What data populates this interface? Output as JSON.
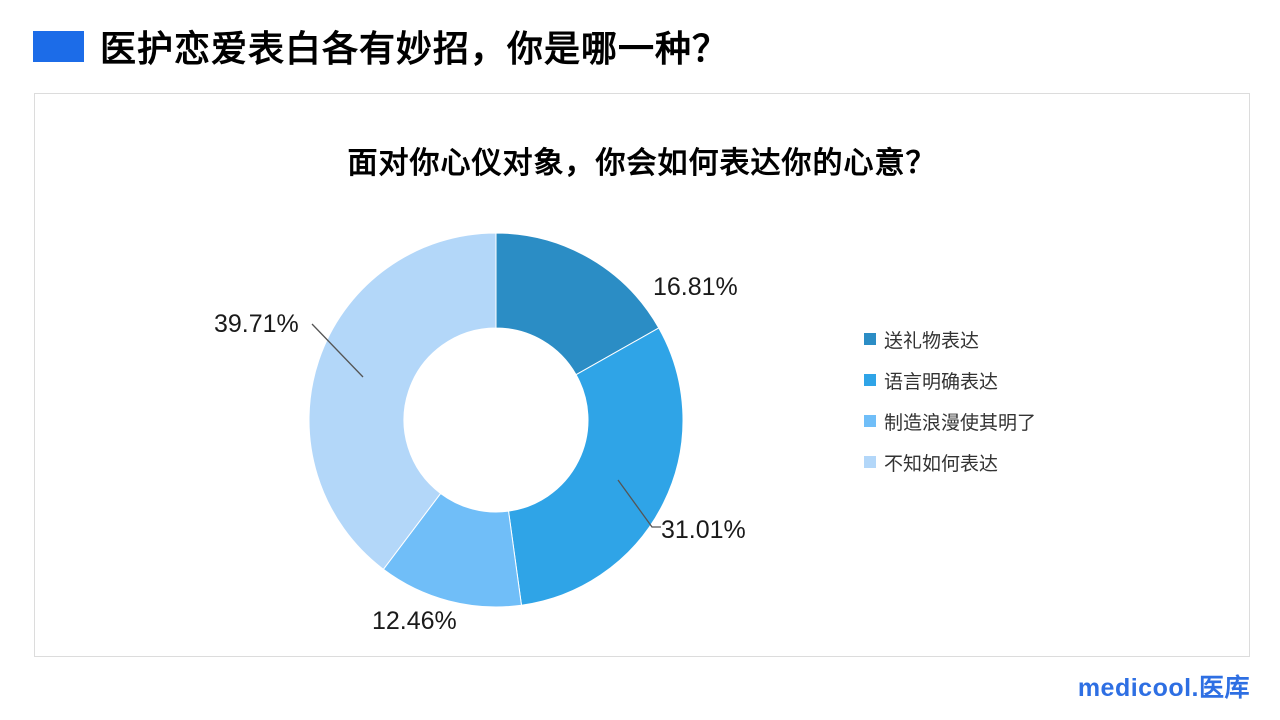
{
  "header": {
    "title": "医护恋爱表白各有妙招，你是哪一种？",
    "accent_color": "#1c6ce8"
  },
  "chart_data": {
    "type": "pie",
    "donut": true,
    "title": "面对你心仪对象，你会如何表达你的心意？",
    "start_angle_deg": 0,
    "direction": "clockwise",
    "legend_position": "right",
    "series": [
      {
        "name": "送礼物表达",
        "value": 16.81,
        "label": "16.81%",
        "color": "#2b8dc5"
      },
      {
        "name": "语言明确表达",
        "value": 31.01,
        "label": "31.01%",
        "color": "#2fa4e7"
      },
      {
        "name": "制造浪漫使其明了",
        "value": 12.46,
        "label": "12.46%",
        "color": "#70bef8"
      },
      {
        "name": "不知如何表达",
        "value": 39.71,
        "label": "39.71%",
        "color": "#b3d7f9"
      }
    ]
  },
  "footer": {
    "logo_text": "medicool.医库",
    "logo_color": "#2e6fe3"
  }
}
